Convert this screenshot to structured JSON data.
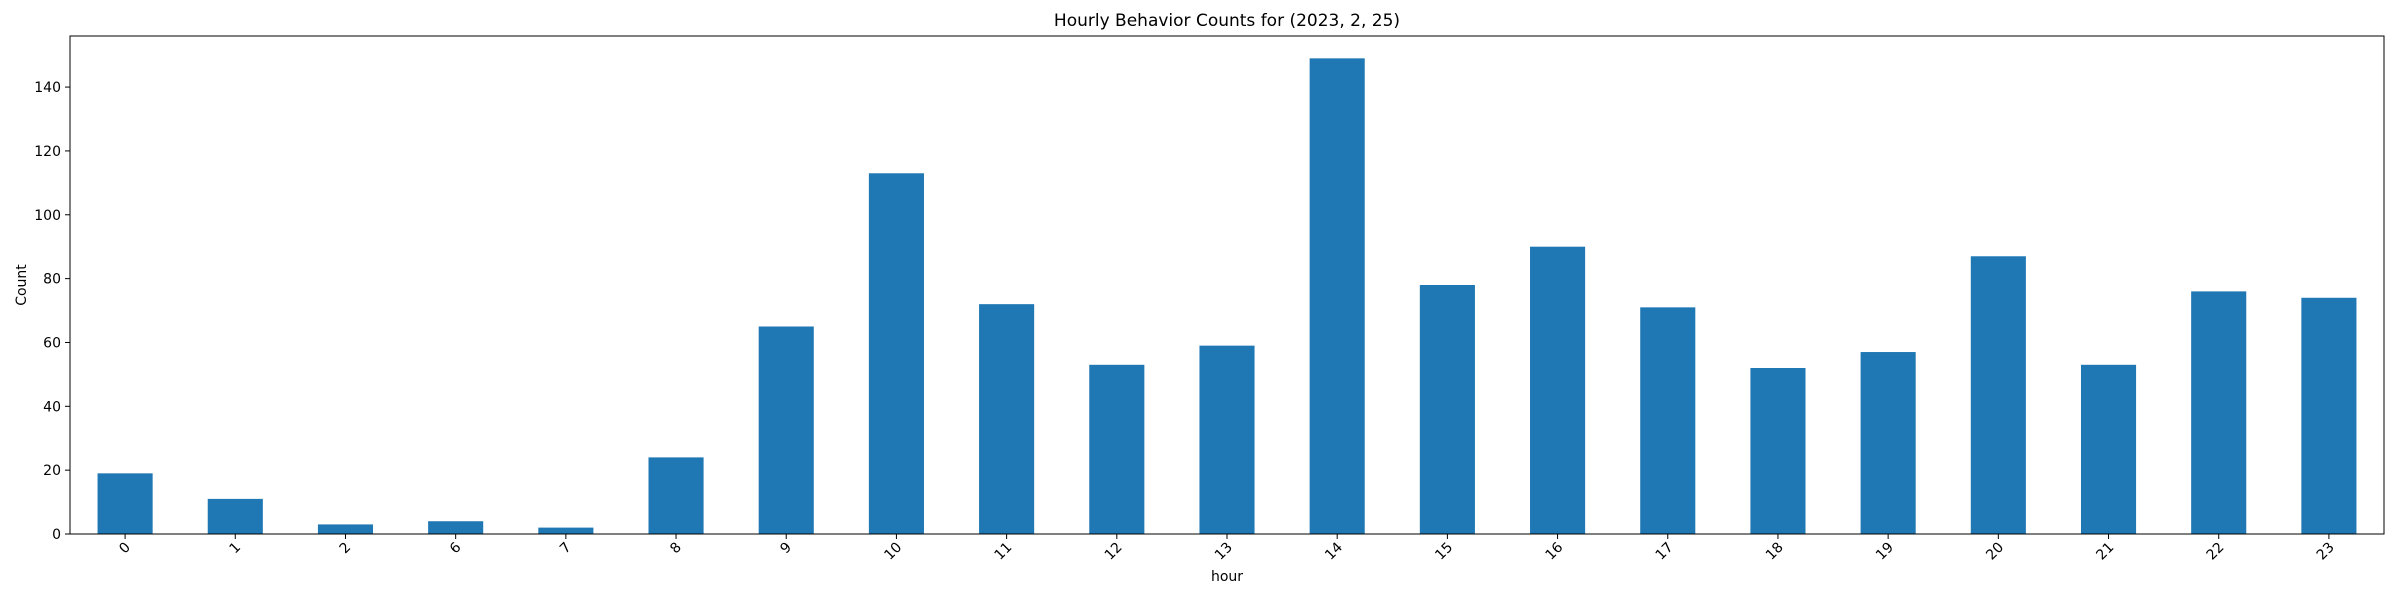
{
  "chart_data": {
    "type": "bar",
    "title": "Hourly Behavior Counts for (2023, 2, 25)",
    "xlabel": "hour",
    "ylabel": "Count",
    "categories": [
      "0",
      "1",
      "2",
      "6",
      "7",
      "8",
      "9",
      "10",
      "11",
      "12",
      "13",
      "14",
      "15",
      "16",
      "17",
      "18",
      "19",
      "20",
      "21",
      "22",
      "23"
    ],
    "values": [
      19,
      11,
      3,
      4,
      2,
      24,
      65,
      113,
      72,
      53,
      59,
      149,
      78,
      90,
      71,
      52,
      57,
      87,
      53,
      76,
      74
    ],
    "ylim": [
      0,
      156
    ],
    "yticks": [
      0,
      20,
      40,
      60,
      80,
      100,
      120,
      140
    ],
    "grid": false,
    "legend": "none",
    "bar_color": "#1f77b4"
  }
}
